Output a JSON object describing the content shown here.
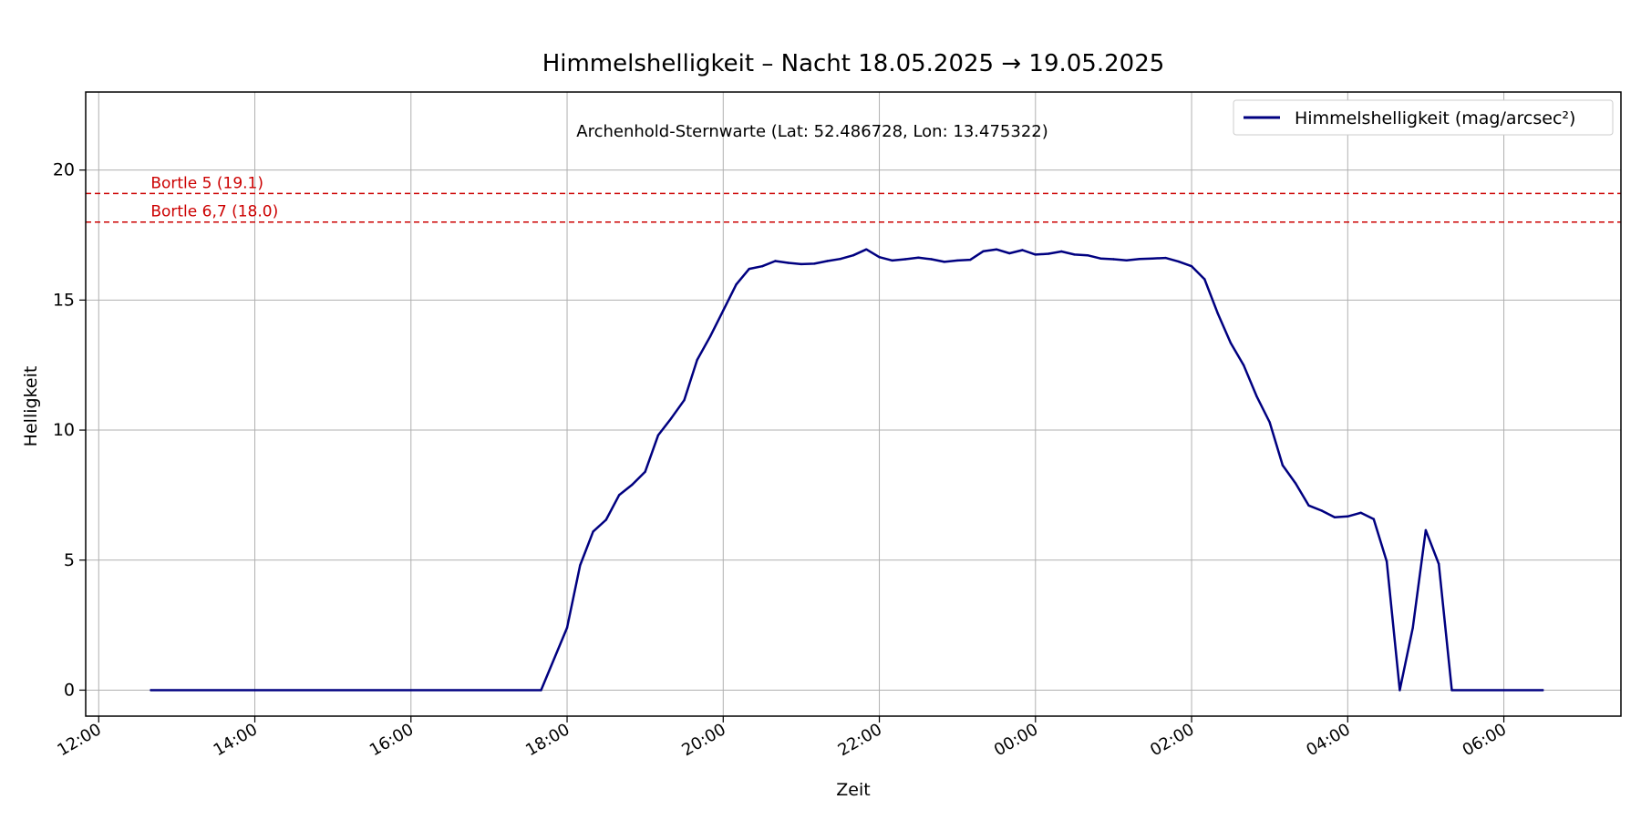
{
  "chart_data": {
    "type": "line",
    "title": "Himmelshelligkeit – Nacht 18.05.2025 → 19.05.2025",
    "subtitle": "Archenhold-Sternwarte (Lat: 52.486728, Lon: 13.475322)",
    "xlabel": "Zeit",
    "ylabel": "Helligkeit",
    "x_tick_labels": [
      "12:00",
      "14:00",
      "16:00",
      "18:00",
      "20:00",
      "22:00",
      "00:00",
      "02:00",
      "04:00",
      "06:00"
    ],
    "y_ticks": [
      0,
      5,
      10,
      15,
      20
    ],
    "xlim": [
      "2025-05-18T11:50",
      "2025-05-19T07:30"
    ],
    "ylim": [
      -1,
      23
    ],
    "grid": true,
    "legend_position": "top-right",
    "reference_lines": [
      {
        "label": "Bortle 5 (19.1)",
        "value": 19.1,
        "color": "#cc0000"
      },
      {
        "label": "Bortle 6,7 (18.0)",
        "value": 18.0,
        "color": "#cc0000"
      }
    ],
    "series": [
      {
        "name": "Himmelshelligkeit (mag/arcsec²)",
        "color": "#000080",
        "x": [
          "2025-05-18T12:40",
          "2025-05-18T17:40",
          "2025-05-18T18:00",
          "2025-05-18T18:10",
          "2025-05-18T18:20",
          "2025-05-18T18:30",
          "2025-05-18T18:40",
          "2025-05-18T18:50",
          "2025-05-18T19:00",
          "2025-05-18T19:10",
          "2025-05-18T19:20",
          "2025-05-18T19:30",
          "2025-05-18T19:40",
          "2025-05-18T19:50",
          "2025-05-18T20:00",
          "2025-05-18T20:10",
          "2025-05-18T20:20",
          "2025-05-18T20:30",
          "2025-05-18T20:40",
          "2025-05-18T20:50",
          "2025-05-18T21:00",
          "2025-05-18T21:10",
          "2025-05-18T21:20",
          "2025-05-18T21:30",
          "2025-05-18T21:40",
          "2025-05-18T21:50",
          "2025-05-18T22:00",
          "2025-05-18T22:10",
          "2025-05-18T22:20",
          "2025-05-18T22:30",
          "2025-05-18T22:40",
          "2025-05-18T22:50",
          "2025-05-18T23:00",
          "2025-05-18T23:10",
          "2025-05-18T23:20",
          "2025-05-18T23:30",
          "2025-05-18T23:40",
          "2025-05-18T23:50",
          "2025-05-19T00:00",
          "2025-05-19T00:10",
          "2025-05-19T00:20",
          "2025-05-19T00:30",
          "2025-05-19T00:40",
          "2025-05-19T00:50",
          "2025-05-19T01:00",
          "2025-05-19T01:10",
          "2025-05-19T01:20",
          "2025-05-19T01:30",
          "2025-05-19T01:40",
          "2025-05-19T01:50",
          "2025-05-19T02:00",
          "2025-05-19T02:10",
          "2025-05-19T02:20",
          "2025-05-19T02:30",
          "2025-05-19T02:40",
          "2025-05-19T02:50",
          "2025-05-19T03:00",
          "2025-05-19T03:10",
          "2025-05-19T03:20",
          "2025-05-19T03:30",
          "2025-05-19T03:40",
          "2025-05-19T03:50",
          "2025-05-19T04:00",
          "2025-05-19T04:10",
          "2025-05-19T04:20",
          "2025-05-19T04:30",
          "2025-05-19T04:40",
          "2025-05-19T04:50",
          "2025-05-19T05:00",
          "2025-05-19T05:10",
          "2025-05-19T05:20",
          "2025-05-19T06:30"
        ],
        "y": [
          0,
          0,
          2.4,
          4.8,
          6.1,
          6.55,
          7.5,
          7.9,
          8.4,
          9.8,
          10.45,
          11.15,
          12.7,
          13.6,
          14.6,
          15.6,
          16.2,
          16.3,
          16.5,
          16.43,
          16.38,
          16.4,
          16.5,
          16.58,
          16.72,
          16.95,
          16.65,
          16.52,
          16.57,
          16.63,
          16.57,
          16.47,
          16.52,
          16.55,
          16.88,
          16.95,
          16.8,
          16.92,
          16.75,
          16.78,
          16.87,
          16.75,
          16.72,
          16.6,
          16.57,
          16.53,
          16.58,
          16.6,
          16.62,
          16.48,
          16.3,
          15.8,
          14.5,
          13.35,
          12.5,
          11.3,
          10.3,
          8.65,
          7.95,
          7.1,
          6.9,
          6.65,
          6.68,
          6.82,
          6.58,
          4.95,
          0,
          2.4,
          6.15,
          4.85,
          0,
          0
        ]
      }
    ]
  }
}
